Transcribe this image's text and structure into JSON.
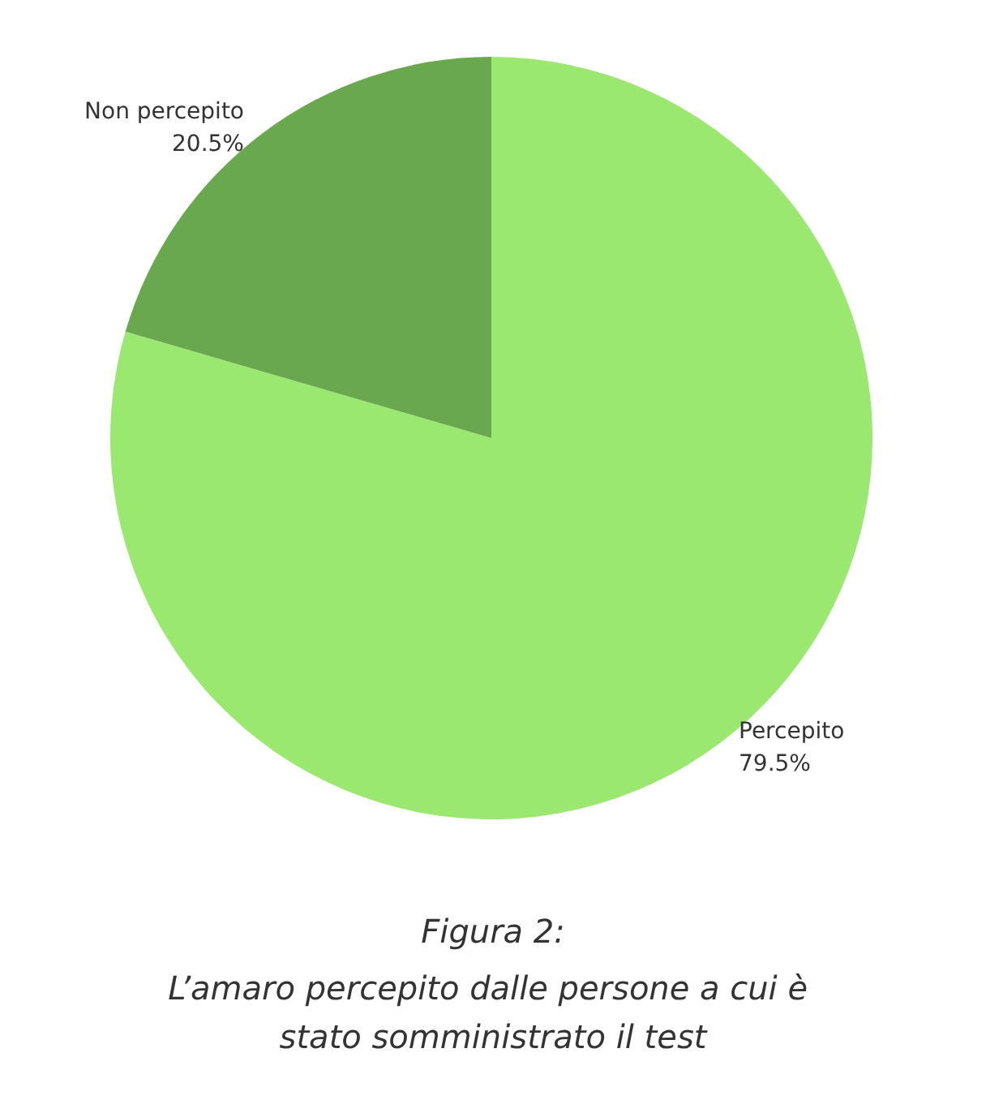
{
  "chart_data": {
    "type": "pie",
    "title": "Figura 2:",
    "subtitle": "L’amaro percepito dalle persone a cui è stato somministrato il test",
    "categories": [
      "Percepito",
      "Non percepito"
    ],
    "values": [
      79.5,
      20.5
    ],
    "value_labels": [
      "79.5%",
      "20.5%"
    ],
    "colors": [
      "#9be870",
      "#6aa84f"
    ]
  }
}
